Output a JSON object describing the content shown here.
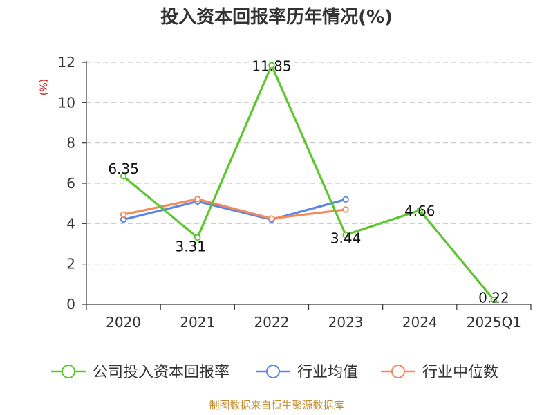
{
  "title": "投入资本回报率历年情况(%)",
  "source": "制图数据来自恒生聚源数据库",
  "chart_data": {
    "type": "line",
    "title": "投入资本回报率历年情况(%)",
    "ylabel": "(%)",
    "xlabel": "",
    "categories": [
      "2020",
      "2021",
      "2022",
      "2023",
      "2024",
      "2025Q1"
    ],
    "ylim": [
      0,
      12
    ],
    "yticks": [
      0,
      2,
      4,
      6,
      8,
      10,
      12
    ],
    "grid": true,
    "legend_position": "bottom",
    "series": [
      {
        "name": "公司投入资本回报率",
        "color": "#5cc62d",
        "values": [
          6.35,
          3.31,
          11.85,
          3.44,
          4.66,
          0.22
        ],
        "labels": [
          "6.35",
          "3.31",
          "11.85",
          "3.44",
          "4.66",
          "0.22"
        ]
      },
      {
        "name": "行业均值",
        "color": "#5b86e5",
        "values": [
          4.2,
          5.1,
          4.2,
          5.2,
          null,
          null
        ]
      },
      {
        "name": "行业中位数",
        "color": "#f5895e",
        "values": [
          4.45,
          5.22,
          4.25,
          4.7,
          null,
          null
        ]
      }
    ]
  }
}
